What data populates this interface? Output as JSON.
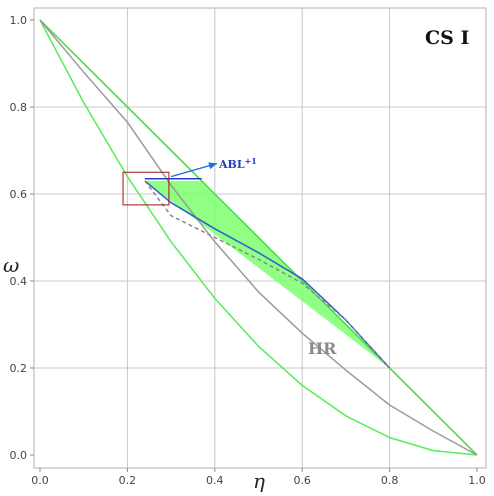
{
  "chart_data": {
    "type": "line",
    "title": "CS I",
    "xlabel": "η",
    "ylabel": "ω",
    "xlim": [
      0,
      1
    ],
    "ylim": [
      0,
      1
    ],
    "grid": true,
    "x_ticks": [
      "0.0",
      "0.2",
      "0.4",
      "0.6",
      "0.8",
      "1.0"
    ],
    "y_ticks": [
      "0.0",
      "0.2",
      "0.4",
      "0.6",
      "0.8",
      "1.0"
    ],
    "annotations": {
      "abl": "ABL",
      "abl_sup": "+1",
      "hr": "HR"
    },
    "shaded_region": {
      "color": "#7dff6e",
      "points": [
        [
          0.24,
          0.63
        ],
        [
          0.37,
          0.63
        ],
        [
          0.8,
          0.2
        ],
        [
          0.24,
          0.63
        ]
      ]
    },
    "series": [
      {
        "color": "#55d855",
        "points": [
          [
            0,
            1
          ],
          [
            1,
            0
          ]
        ]
      },
      {
        "color": "#55d855",
        "points": [
          [
            0,
            1
          ],
          [
            0.8,
            0.2
          ]
        ]
      },
      {
        "color": "#55d855",
        "points": [
          [
            0.8,
            0.2
          ],
          [
            1,
            0
          ]
        ]
      },
      {
        "color": "#55ee55",
        "points": [
          [
            0,
            1
          ],
          [
            0.1,
            0.81
          ],
          [
            0.2,
            0.64
          ],
          [
            0.3,
            0.49
          ],
          [
            0.4,
            0.36
          ],
          [
            0.5,
            0.25
          ],
          [
            0.6,
            0.16
          ],
          [
            0.7,
            0.09
          ],
          [
            0.8,
            0.04
          ],
          [
            0.9,
            0.01
          ],
          [
            1,
            0
          ]
        ]
      },
      {
        "color": "#9a9a9a",
        "points": [
          [
            0,
            1
          ],
          [
            0.1,
            0.88
          ],
          [
            0.2,
            0.765
          ],
          [
            0.3,
            0.62
          ],
          [
            0.4,
            0.49
          ],
          [
            0.5,
            0.375
          ],
          [
            0.6,
            0.28
          ],
          [
            0.7,
            0.195
          ],
          [
            0.8,
            0.115
          ],
          [
            0.9,
            0.055
          ],
          [
            1,
            0
          ]
        ]
      },
      {
        "color": "#2f5fd0",
        "points": [
          [
            0.24,
            0.63
          ],
          [
            0.3,
            0.58
          ],
          [
            0.4,
            0.52
          ],
          [
            0.5,
            0.465
          ],
          [
            0.6,
            0.405
          ],
          [
            0.7,
            0.31
          ],
          [
            0.8,
            0.2
          ]
        ]
      },
      {
        "color": "#1f3fbf",
        "points": [
          [
            0.24,
            0.635
          ],
          [
            0.37,
            0.635
          ]
        ]
      },
      {
        "color": "#888888",
        "dashed": true,
        "points": [
          [
            0.24,
            0.63
          ],
          [
            0.3,
            0.55
          ],
          [
            0.4,
            0.5
          ],
          [
            0.5,
            0.45
          ],
          [
            0.6,
            0.395
          ],
          [
            0.7,
            0.31
          ],
          [
            0.8,
            0.2
          ]
        ]
      }
    ],
    "inset_box": {
      "color": "#a01515",
      "x": [
        0.19,
        0.295
      ],
      "y": [
        0.575,
        0.65
      ]
    },
    "arrow": {
      "color": "#1a6fd0",
      "from": [
        0.3,
        0.64
      ],
      "to": [
        0.405,
        0.67
      ]
    }
  }
}
